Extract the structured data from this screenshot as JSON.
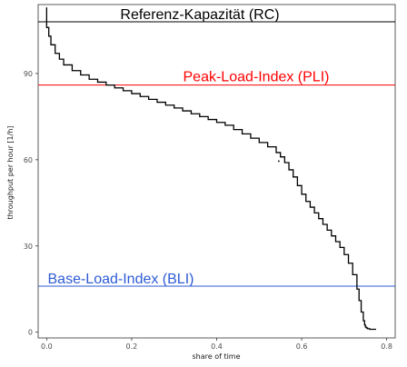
{
  "chart_data": {
    "type": "line",
    "xlabel": "share of time",
    "ylabel": "throughput per hour [1/h]",
    "xlim": [
      -0.02,
      0.82
    ],
    "ylim": [
      -2,
      114
    ],
    "x_ticks": [
      0.0,
      0.2,
      0.4,
      0.6,
      0.8
    ],
    "x_tick_labels": [
      "0.0",
      "0.2",
      "0.4",
      "0.6",
      "0.8"
    ],
    "y_ticks": [
      0,
      30,
      60,
      90
    ],
    "y_tick_labels": [
      "0",
      "30",
      "60",
      "90"
    ],
    "grid": false,
    "series": [
      {
        "name": "",
        "color": "#000000",
        "x": [
          0.0,
          0.0,
          0.005,
          0.01,
          0.02,
          0.03,
          0.04,
          0.06,
          0.08,
          0.1,
          0.12,
          0.14,
          0.16,
          0.18,
          0.2,
          0.22,
          0.24,
          0.26,
          0.28,
          0.3,
          0.32,
          0.34,
          0.36,
          0.38,
          0.4,
          0.42,
          0.44,
          0.46,
          0.48,
          0.5,
          0.52,
          0.54,
          0.55,
          0.56,
          0.57,
          0.58,
          0.59,
          0.6,
          0.61,
          0.62,
          0.63,
          0.64,
          0.65,
          0.66,
          0.67,
          0.68,
          0.69,
          0.7,
          0.71,
          0.72,
          0.73,
          0.735,
          0.74,
          0.745,
          0.748,
          0.75,
          0.752,
          0.755,
          0.76,
          0.775
        ],
        "y": [
          113,
          106,
          103,
          100,
          97,
          95,
          93,
          91,
          89.5,
          88,
          87,
          86,
          85,
          84,
          83,
          82,
          81,
          80,
          79,
          78,
          77,
          76,
          75,
          74,
          73,
          72,
          70.5,
          69,
          67.5,
          66,
          64.5,
          62.5,
          61,
          59,
          56.5,
          54,
          51,
          48,
          45.5,
          43.5,
          41.5,
          39.5,
          37.5,
          35.5,
          33.5,
          31.5,
          29.5,
          27,
          24,
          20,
          15,
          11,
          7,
          4,
          2.5,
          1.8,
          1.5,
          1.2,
          1,
          1
        ]
      }
    ],
    "reference_lines": [
      {
        "label": "Referenz-Kapazität (RC)",
        "y": 108,
        "color": "#000000"
      },
      {
        "label": "Peak-Load-Index (PLI)",
        "y": 86,
        "color": "#ff0000"
      },
      {
        "label": "Base-Load-Index (BLI)",
        "y": 16,
        "color": "#2e5bd6"
      }
    ],
    "outlier_points": [
      {
        "x": 0.546,
        "y": 59.5
      }
    ]
  }
}
